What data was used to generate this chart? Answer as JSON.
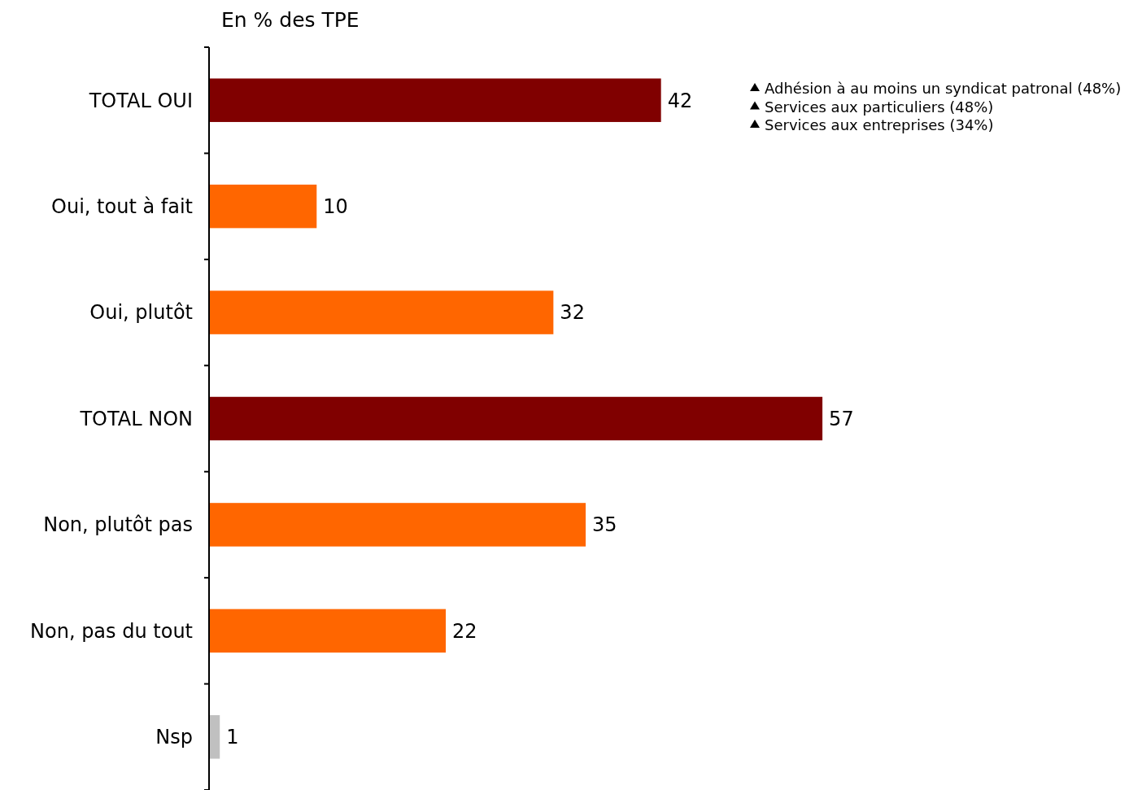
{
  "chart_data": {
    "type": "bar",
    "orientation": "horizontal",
    "title": "En % des TPE",
    "categories": [
      "TOTAL OUI",
      "Oui, tout à fait",
      "Oui, plutôt",
      "TOTAL NON",
      "Non, plutôt pas",
      "Non, pas du tout",
      "Nsp"
    ],
    "values": [
      42,
      10,
      32,
      57,
      35,
      22,
      1
    ],
    "colors": [
      "#800000",
      "#ff6600",
      "#ff6600",
      "#800000",
      "#ff6600",
      "#ff6600",
      "#c0c0c0"
    ],
    "data_labels": true,
    "annotations": [
      "Adhésion à au moins un syndicat patronal (48%)",
      "Services aux particuliers (48%)",
      "Services aux entreprises (34%)"
    ]
  }
}
